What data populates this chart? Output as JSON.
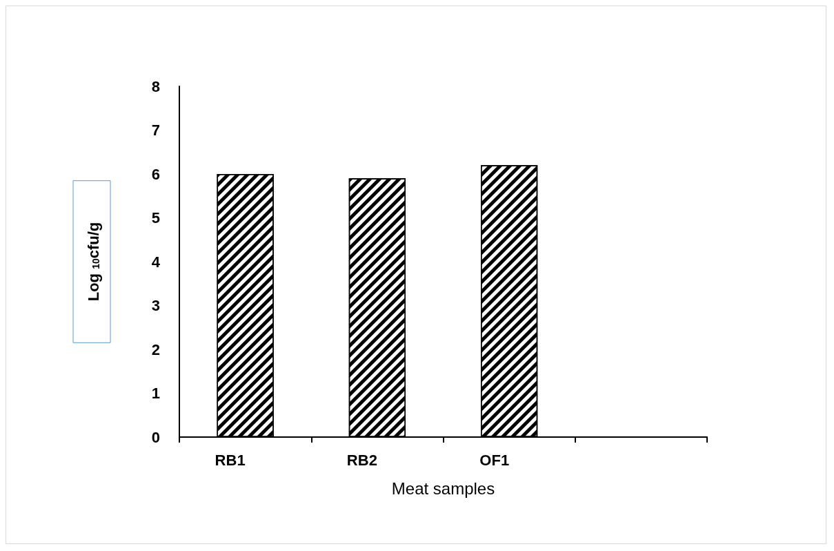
{
  "chart_data": {
    "type": "bar",
    "xlabel": "Meat samples",
    "ylabel": "Log $_{10}$cfu/g",
    "categories": [
      "RB1",
      "RB2",
      "OF1",
      null
    ],
    "values": [
      6.0,
      5.9,
      6.2,
      null
    ],
    "color": "#000000",
    "ylim": [
      0,
      8
    ],
    "yticks": [
      0,
      1,
      2,
      3,
      4,
      5,
      6,
      7,
      8
    ],
    "grid": false
  }
}
